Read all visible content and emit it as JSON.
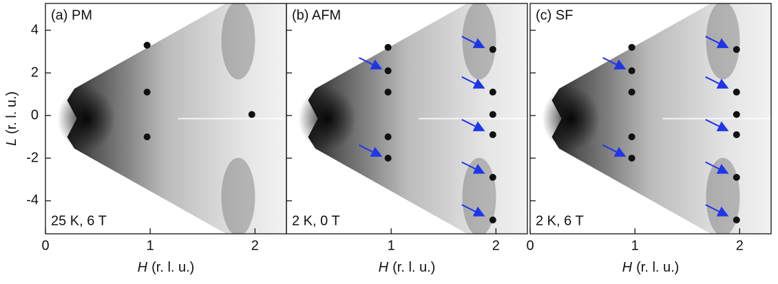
{
  "chart_data": [
    {
      "type": "intensity-map",
      "title": "(a) PM",
      "annotation": "25 K, 6 T",
      "xlabel_var": "H",
      "xlabel_unit": "(r. l. u.)",
      "ylabel_var": "L",
      "ylabel_unit": "(r. l. u.)",
      "xlim": [
        0,
        2.3
      ],
      "ylim": [
        -5.55,
        5.26
      ],
      "xticks": [
        0,
        1,
        2
      ],
      "yticks": [
        -4,
        -2,
        0,
        2,
        4
      ],
      "show_ytick_labels": true,
      "peaks": {
        "h": [
          0.97,
          0.97,
          0.97,
          1.97
        ],
        "l": [
          3.3,
          1.1,
          -1.0,
          0.05
        ]
      },
      "arrows": {
        "color": "#1f35e8",
        "h": [],
        "l": []
      }
    },
    {
      "type": "intensity-map",
      "title": "(b) AFM",
      "annotation": "2 K, 0 T",
      "xlabel_var": "H",
      "xlabel_unit": "(r. l. u.)",
      "xlim": [
        0,
        2.3
      ],
      "ylim": [
        -5.55,
        5.26
      ],
      "xticks": [
        1,
        2
      ],
      "yticks": [
        -4,
        -2,
        0,
        2,
        4
      ],
      "show_ytick_labels": false,
      "peaks": {
        "h": [
          0.97,
          0.97,
          0.97,
          0.97,
          0.97,
          1.97,
          1.97,
          1.97,
          1.97,
          1.97,
          1.97
        ],
        "l": [
          3.2,
          2.1,
          1.1,
          -1.0,
          -2.0,
          0.05,
          3.1,
          1.1,
          -0.9,
          -2.9,
          -4.9
        ]
      },
      "arrows": {
        "color": "#1f35e8",
        "h": [
          0.95,
          0.95,
          1.93,
          1.93,
          1.93,
          1.93,
          1.93
        ],
        "l": [
          2.1,
          -2.0,
          3.1,
          1.2,
          -0.8,
          -2.8,
          -4.8
        ]
      }
    },
    {
      "type": "intensity-map",
      "title": "(c) SF",
      "annotation": "2 K, 6 T",
      "xlabel_var": "H",
      "xlabel_unit": "(r. l. u.)",
      "xlim": [
        0,
        2.3
      ],
      "ylim": [
        -5.55,
        5.26
      ],
      "xticks": [
        0,
        1,
        2
      ],
      "yticks": [
        -4,
        -2,
        0,
        2,
        4
      ],
      "show_ytick_labels": false,
      "peaks": {
        "h": [
          0.97,
          0.97,
          0.97,
          0.97,
          0.97,
          1.97,
          1.97,
          1.97,
          1.97,
          1.97,
          1.97
        ],
        "l": [
          3.2,
          2.1,
          1.1,
          -1.0,
          -2.0,
          0.05,
          3.1,
          1.1,
          -0.9,
          -2.9,
          -4.9
        ]
      },
      "arrows": {
        "color": "#1f35e8",
        "h": [
          0.95,
          0.95,
          1.93,
          1.93,
          1.93,
          1.93,
          1.93
        ],
        "l": [
          2.1,
          -2.0,
          3.1,
          1.2,
          -0.8,
          -2.8,
          -4.8
        ]
      }
    }
  ]
}
